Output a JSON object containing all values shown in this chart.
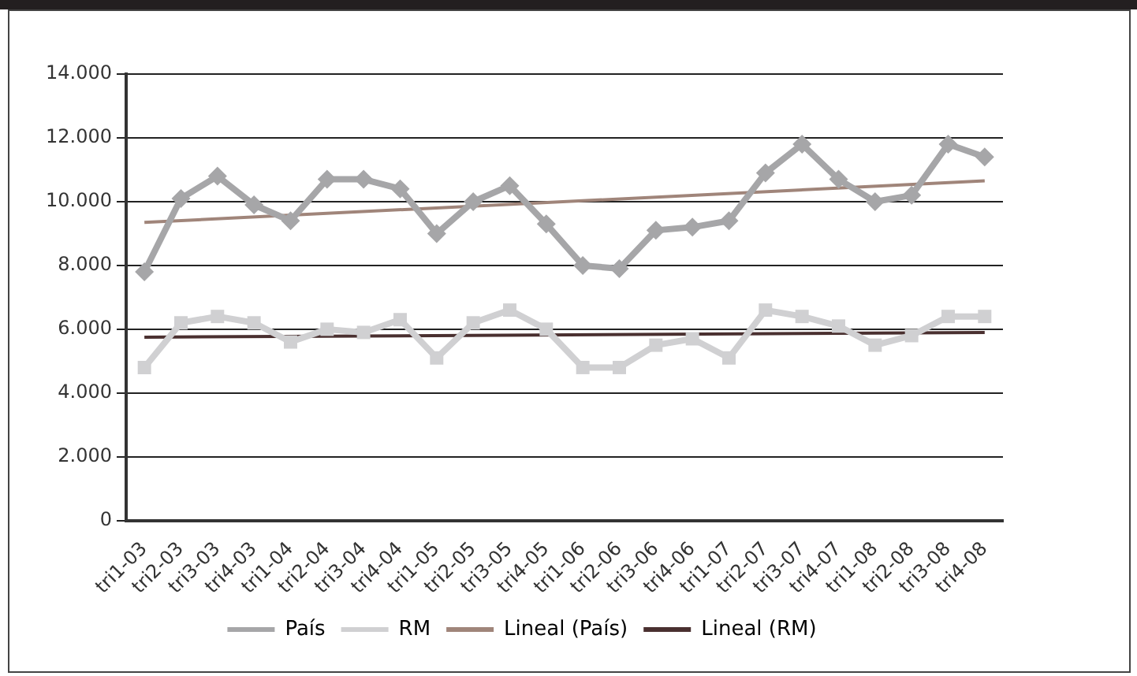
{
  "chart_data": {
    "type": "line",
    "categories": [
      "tri1-03",
      "tri2-03",
      "tri3-03",
      "tri4-03",
      "tri1-04",
      "tri2-04",
      "tri3-04",
      "tri4-04",
      "tri1-05",
      "tri2-05",
      "tri3-05",
      "tri4-05",
      "tri1-06",
      "tri2-06",
      "tri3-06",
      "tri4-06",
      "tri1-07",
      "tri2-07",
      "tri3-07",
      "tri4-07",
      "tri1-08",
      "tri2-08",
      "tri3-08",
      "tri4-08"
    ],
    "series": [
      {
        "name": "País",
        "color": "#a6a6a8",
        "marker": "diamond",
        "values": [
          7800,
          10100,
          10800,
          9900,
          9400,
          10700,
          10700,
          10400,
          9000,
          10000,
          10500,
          9300,
          8000,
          7900,
          9100,
          9200,
          9400,
          10900,
          11800,
          10700,
          10000,
          10200,
          11800,
          11400
        ]
      },
      {
        "name": "RM",
        "color": "#d0d0d2",
        "marker": "square",
        "values": [
          4800,
          6200,
          6400,
          6200,
          5600,
          6000,
          5900,
          6300,
          5100,
          6200,
          6600,
          6000,
          4800,
          4800,
          5500,
          5700,
          5100,
          6600,
          6400,
          6100,
          5500,
          5800,
          6400,
          6400
        ]
      },
      {
        "name": "Lineal (País)",
        "color": "#a0857a",
        "marker": "none",
        "x": [
          "tri1-03",
          "tri4-08"
        ],
        "values": [
          9350,
          10650
        ]
      },
      {
        "name": "Lineal (RM)",
        "color": "#4a3030",
        "marker": "none",
        "x": [
          "tri1-03",
          "tri4-08"
        ],
        "values": [
          5750,
          5900
        ]
      }
    ],
    "ylim": [
      0,
      14000
    ],
    "yticks": [
      {
        "value": 0,
        "label": "0"
      },
      {
        "value": 2000,
        "label": "2.000"
      },
      {
        "value": 4000,
        "label": "4.000"
      },
      {
        "value": 6000,
        "label": "6.000"
      },
      {
        "value": 8000,
        "label": "8.000"
      },
      {
        "value": 10000,
        "label": "10.000"
      },
      {
        "value": 12000,
        "label": "12.000"
      },
      {
        "value": 14000,
        "label": "14.000"
      }
    ],
    "grid": "y",
    "legend": "bottom"
  }
}
